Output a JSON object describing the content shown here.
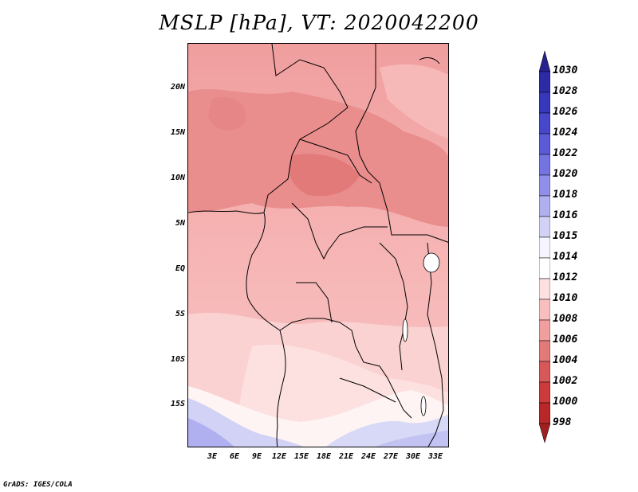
{
  "title": "MSLP [hPa], VT: 2020042200",
  "footer": "GrADS: IGES/COLA",
  "lat_labels": [
    "20N",
    "15N",
    "10N",
    "5N",
    "EQ",
    "5S",
    "10S",
    "15S"
  ],
  "lon_labels": [
    "3E",
    "6E",
    "9E",
    "12E",
    "15E",
    "18E",
    "21E",
    "24E",
    "27E",
    "30E",
    "33E"
  ],
  "colorbar": {
    "labels": [
      "1030",
      "1028",
      "1026",
      "1024",
      "1022",
      "1020",
      "1018",
      "1016",
      "1015",
      "1014",
      "1012",
      "1010",
      "1008",
      "1006",
      "1004",
      "1002",
      "1000",
      "998"
    ],
    "colors": [
      "#27208f",
      "#2d2aa6",
      "#3737bb",
      "#4747cc",
      "#5b5bd8",
      "#7373e2",
      "#9090ea",
      "#b0b0f0",
      "#d2d2f6",
      "#f5f5ff",
      "#ffffff",
      "#fde1e1",
      "#f9bfbf",
      "#f09e9e",
      "#e27a7a",
      "#d65858",
      "#cc3b3b",
      "#b82828",
      "#a02020"
    ]
  },
  "map": {
    "field": "Mean sea level pressure",
    "region": "Central Africa"
  }
}
